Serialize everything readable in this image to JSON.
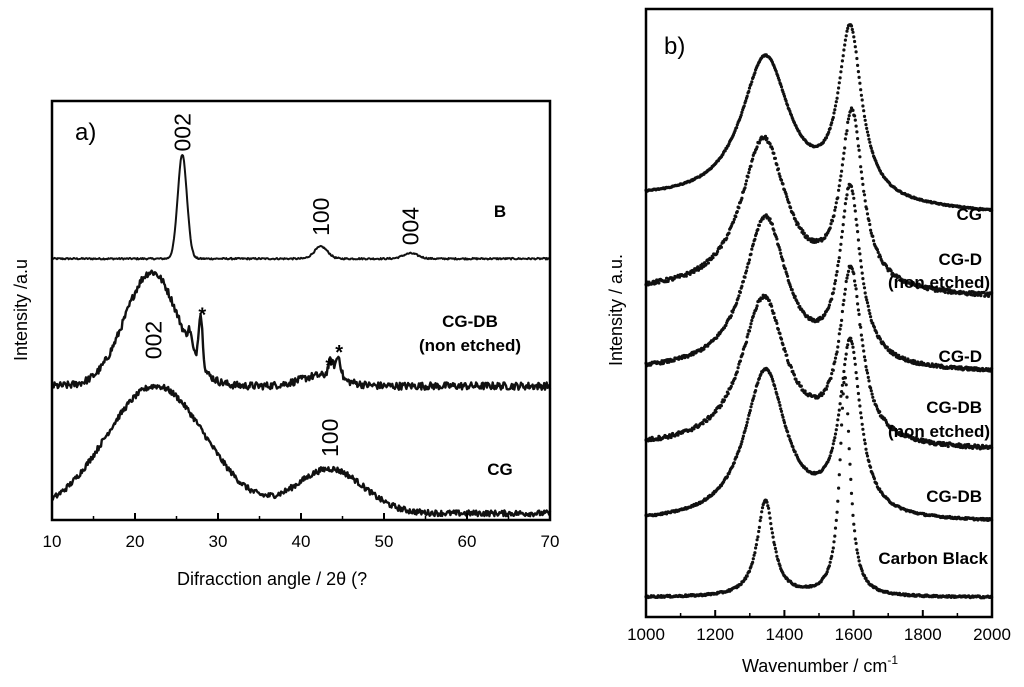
{
  "chart_data": [
    {
      "panel": "a)",
      "type": "line",
      "xlabel": "Difracction angle / 2θ (?",
      "ylabel": "Intensity /a.u",
      "xlim": [
        10,
        70
      ],
      "xticks": [
        10,
        20,
        30,
        40,
        50,
        60,
        70
      ],
      "y_ticklabels": false,
      "series": [
        {
          "name": "B",
          "baseline": 1.95,
          "noise": 0.006,
          "peaks": [
            {
              "center": 25.7,
              "height": 0.78,
              "width": 0.55
            },
            {
              "center": 42.4,
              "height": 0.09,
              "width": 0.8
            },
            {
              "center": 53.2,
              "height": 0.04,
              "width": 0.9
            }
          ]
        },
        {
          "name": "CG-DB (non etched)",
          "label_lines": [
            "CG-DB",
            "(non etched)"
          ],
          "baseline": 1.0,
          "noise": 0.028,
          "peaks": [
            {
              "center": 22.0,
              "height": 0.85,
              "width": 3.2
            },
            {
              "center": 27.9,
              "height": 0.38,
              "width": 0.25
            },
            {
              "center": 26.6,
              "height": 0.12,
              "width": 0.25
            },
            {
              "center": 43.6,
              "height": 0.12,
              "width": 0.3
            },
            {
              "center": 44.5,
              "height": 0.16,
              "width": 0.3
            },
            {
              "center": 42.5,
              "height": 0.08,
              "width": 2.5
            }
          ]
        },
        {
          "name": "CG",
          "baseline": 0.05,
          "noise": 0.022,
          "peaks": [
            {
              "center": 22.5,
              "height": 0.95,
              "width": 6.0
            },
            {
              "center": 43.5,
              "height": 0.33,
              "width": 4.0
            }
          ]
        }
      ],
      "annotations": [
        {
          "text": "002",
          "x": 25.7,
          "y": 2.75,
          "orientation": "vertical"
        },
        {
          "text": "100",
          "x": 42.4,
          "y": 2.12,
          "orientation": "vertical"
        },
        {
          "text": "004",
          "x": 53.2,
          "y": 2.05,
          "orientation": "vertical"
        },
        {
          "text": "002",
          "x": 22.2,
          "y": 1.2,
          "orientation": "vertical"
        },
        {
          "text": "100",
          "x": 43.5,
          "y": 0.47,
          "orientation": "vertical"
        },
        {
          "text": "*",
          "x": 28.1,
          "y": 1.48,
          "orientation": "horizontal"
        },
        {
          "text": "*",
          "x": 43.4,
          "y": 1.1,
          "orientation": "horizontal"
        },
        {
          "text": "*",
          "x": 44.6,
          "y": 1.2,
          "orientation": "horizontal"
        }
      ]
    },
    {
      "panel": "b)",
      "type": "scatter",
      "xlabel": "Wavenumber / cm",
      "xlabel_superscript": "-1",
      "ylabel": "Intensity / a.u.",
      "xlim": [
        1000,
        2000
      ],
      "xticks": [
        1000,
        1200,
        1400,
        1600,
        1800,
        2000
      ],
      "y_ticklabels": false,
      "series": [
        {
          "name": "CG",
          "offset": 6.2,
          "D": {
            "center": 1345,
            "height": 2.23,
            "width": 85
          },
          "G": {
            "center": 1590,
            "height": 2.59,
            "width": 40
          },
          "tail_end": 0.22,
          "noise": 0.01
        },
        {
          "name": "CG-D (non etched)",
          "label_lines": [
            "CG-D",
            "(non etched)"
          ],
          "offset": 4.9,
          "D": {
            "center": 1340,
            "height": 2.35,
            "width": 80
          },
          "G": {
            "center": 1595,
            "height": 2.66,
            "width": 38
          },
          "tail_end": 0.1,
          "noise": 0.03
        },
        {
          "name": "CG-D",
          "offset": 3.75,
          "D": {
            "center": 1345,
            "height": 2.35,
            "width": 75
          },
          "G": {
            "center": 1590,
            "height": 2.69,
            "width": 36
          },
          "tail_end": 0.02,
          "noise": 0.025
        },
        {
          "name": "CG-DB (non etched)",
          "label_lines": [
            "CG-DB",
            "(non etched)"
          ],
          "offset": 2.55,
          "D": {
            "center": 1340,
            "height": 2.29,
            "width": 78
          },
          "G": {
            "center": 1592,
            "height": 2.64,
            "width": 38
          },
          "tail_end": 0.05,
          "noise": 0.03
        },
        {
          "name": "CG-DB",
          "offset": 1.45,
          "D": {
            "center": 1345,
            "height": 2.31,
            "width": 72
          },
          "G": {
            "center": 1590,
            "height": 2.65,
            "width": 36
          },
          "tail_end": 0.0,
          "noise": 0.015
        },
        {
          "name": "Carbon Black",
          "offset": 0.3,
          "D": {
            "center": 1345,
            "height": 1.48,
            "width": 28
          },
          "G": {
            "center": 1575,
            "height": 3.37,
            "width": 18
          },
          "tail_end": 0.0,
          "noise": 0.015
        }
      ]
    }
  ]
}
